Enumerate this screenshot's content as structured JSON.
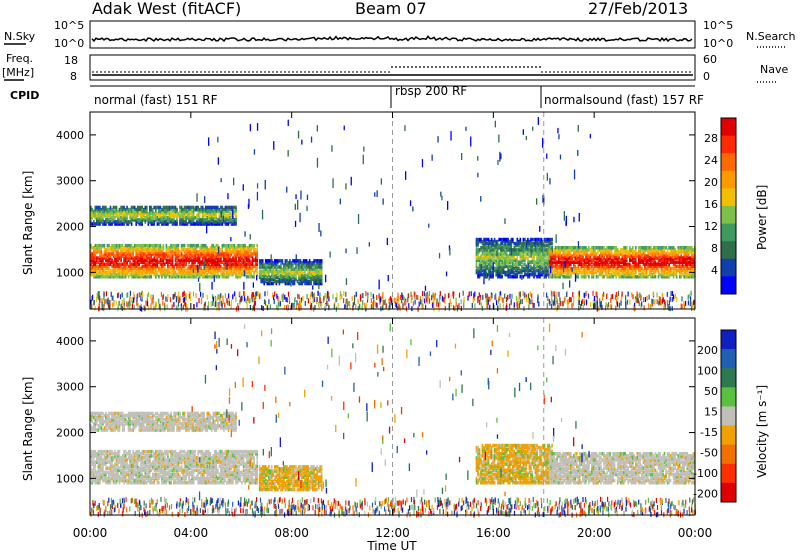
{
  "header": {
    "station": "Adak West (fitACF)",
    "beam": "Beam 07",
    "date": "27/Feb/2013"
  },
  "nsky_panel": {
    "left_label": "N.Sky",
    "right_label": "N.Search",
    "ticks": [
      "10^5",
      "10^0"
    ]
  },
  "freq_panel": {
    "left_label_1": "Freq.",
    "left_label_2": "[MHz]",
    "right_label": "Nave",
    "left_ticks": [
      "18",
      "8"
    ],
    "right_ticks": [
      "60",
      "0"
    ]
  },
  "cpid_panel": {
    "label": "CPID",
    "modes": [
      {
        "text": "normal (fast) 151 RF",
        "start_hour": 0,
        "end_hour": 12
      },
      {
        "text": "rbsp 200 RF",
        "start_hour": 12,
        "end_hour": 18
      },
      {
        "text": "normalsound (fast) 157 RF",
        "start_hour": 18,
        "end_hour": 24
      }
    ]
  },
  "x_axis": {
    "label": "Time UT",
    "ticks": [
      "00:00",
      "04:00",
      "08:00",
      "12:00",
      "16:00",
      "20:00",
      "00:00"
    ],
    "range_hours": [
      0,
      24
    ]
  },
  "power_panel": {
    "ylabel": "Slant Range [km]",
    "yticks": [
      "4000",
      "3000",
      "2000",
      "1000"
    ],
    "colorbar_label": "Power [dB]",
    "colorbar_ticks": [
      "28",
      "24",
      "20",
      "16",
      "12",
      "8",
      "4"
    ],
    "colors": [
      "#0000ff",
      "#1040b0",
      "#2f6e4a",
      "#3f9a60",
      "#7fc04a",
      "#f0c000",
      "#ff9900",
      "#ff6a00",
      "#ff2a00",
      "#e00000"
    ]
  },
  "velocity_panel": {
    "ylabel": "Slant Range [km]",
    "yticks": [
      "4000",
      "3000",
      "2000",
      "1000"
    ],
    "colorbar_label": "Velocity [m s⁻¹]",
    "colorbar_ticks": [
      "200",
      "100",
      "50",
      "15",
      "-15",
      "-50",
      "-100",
      "-200"
    ],
    "colors": [
      "#1020c0",
      "#2060b0",
      "#2e7a50",
      "#5ac040",
      "#c0c0b8",
      "#f0a000",
      "#f07000",
      "#ff3000",
      "#e00000"
    ]
  },
  "chart_data": {
    "type": "heatmap",
    "title": "Adak West (fitACF) Beam 07 27/Feb/2013",
    "xlabel": "Time UT",
    "ylabel": "Slant Range [km]",
    "xlim_hours": [
      0,
      24
    ],
    "ylim_km": [
      200,
      4500
    ],
    "mode_boundaries_hours": [
      12,
      18
    ],
    "echo_regions": [
      {
        "name": "main band",
        "t0": 0.0,
        "t1": 6.6,
        "r0": 900,
        "r1": 1600,
        "power_db": 22,
        "velocity": 0
      },
      {
        "name": "upper band",
        "t0": 0.0,
        "t1": 5.8,
        "r0": 2050,
        "r1": 2450,
        "power_db": 8,
        "velocity": 0
      },
      {
        "name": "patch 08h",
        "t0": 6.7,
        "t1": 9.2,
        "r0": 750,
        "r1": 1250,
        "power_db": 8,
        "velocity": -30
      },
      {
        "name": "patch 17h",
        "t0": 15.3,
        "t1": 18.3,
        "r0": 900,
        "r1": 1750,
        "power_db": 10,
        "velocity": -40
      },
      {
        "name": "late band",
        "t0": 18.2,
        "t1": 24.0,
        "r0": 900,
        "r1": 1550,
        "power_db": 22,
        "velocity": 0
      }
    ]
  }
}
